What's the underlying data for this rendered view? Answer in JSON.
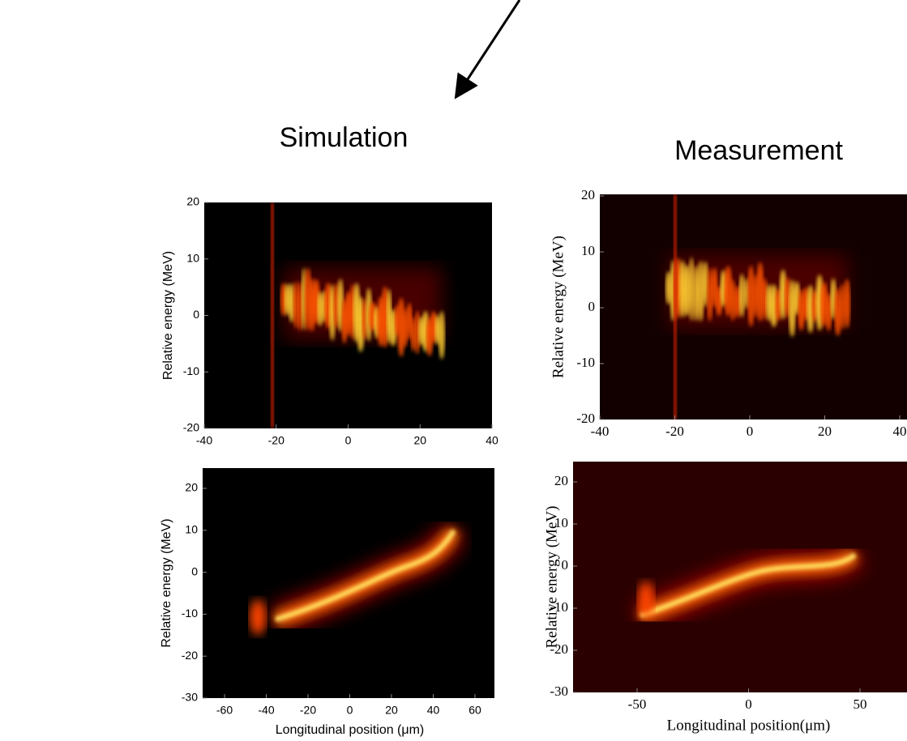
{
  "headings": {
    "left": "Simulation",
    "right": "Measurement"
  },
  "panels": [
    {
      "ylabel": "Relative energy (MeV)",
      "xticks": [
        -40,
        -20,
        0,
        20,
        40
      ],
      "yticks": [
        20,
        10,
        0,
        -10,
        -20
      ]
    },
    {
      "ylabel": "Relative energy (MeV)",
      "xticks": [
        -40,
        -20,
        0,
        20,
        40
      ],
      "yticks": [
        20,
        10,
        0,
        -10,
        -20
      ]
    },
    {
      "ylabel": "Relative energy (MeV)",
      "xlabel": "Longitudinal position (μm)",
      "xticks": [
        -60,
        -40,
        -20,
        0,
        20,
        40,
        60
      ],
      "yticks": [
        20,
        10,
        0,
        -10,
        -20,
        -30
      ]
    },
    {
      "ylabel": "Relative energy (MeV)",
      "xlabel": "Longitudinal position(μm)",
      "xticks": [
        -50,
        0,
        50
      ],
      "yticks": [
        20,
        10,
        0,
        -10,
        -20,
        -30
      ]
    }
  ]
}
